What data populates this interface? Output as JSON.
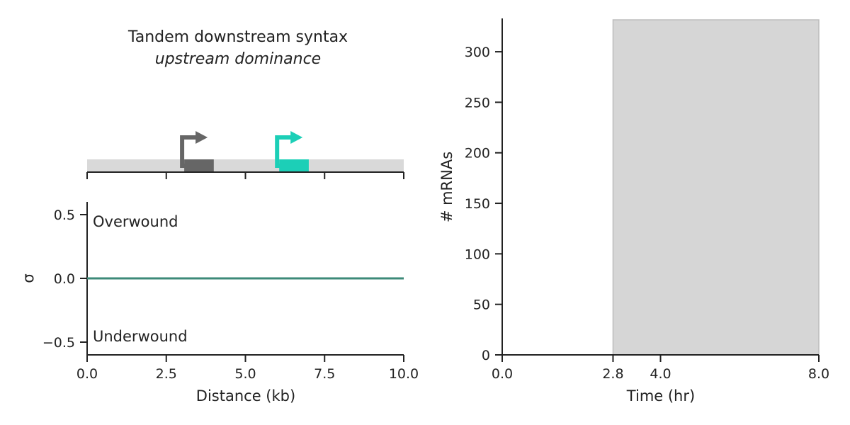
{
  "chart_data": [
    {
      "type": "diagram",
      "title": "Tandem downstream syntax",
      "subtitle": "upstream dominance",
      "xlim": [
        0,
        10
      ],
      "x_ticks": [
        0,
        2.5,
        5,
        7.5,
        10
      ],
      "genes": [
        {
          "start": 3.0,
          "end": 4.0,
          "direction": "forward",
          "color": "#666666"
        },
        {
          "start": 6.0,
          "end": 7.0,
          "direction": "forward",
          "color": "#1ccfb7"
        }
      ],
      "track_color": "#d9d9d9"
    },
    {
      "type": "line",
      "xlabel": "Distance (kb)",
      "ylabel": "σ",
      "xlim": [
        0,
        10
      ],
      "ylim": [
        -0.6,
        0.6
      ],
      "x_tick_labels": [
        "0.0",
        "2.5",
        "5.0",
        "7.5",
        "10.0"
      ],
      "x_ticks": [
        0,
        2.5,
        5,
        7.5,
        10
      ],
      "y_tick_labels": [
        "0.5",
        "0.0",
        "−0.5"
      ],
      "y_ticks": [
        0.5,
        0,
        -0.5
      ],
      "annotations": [
        "Overwound",
        "Underwound"
      ],
      "series": [
        {
          "x": [
            0,
            10
          ],
          "y": [
            0,
            0
          ],
          "color": "#3d8a78"
        }
      ]
    },
    {
      "type": "area",
      "xlabel": "Time (hr)",
      "ylabel": "# mRNAs",
      "xlim": [
        0,
        8
      ],
      "ylim": [
        0,
        333
      ],
      "x_tick_labels": [
        "0.0",
        "2.8",
        "4.0",
        "8.0"
      ],
      "x_ticks": [
        0,
        2.8,
        4.0,
        8.0
      ],
      "y_tick_labels": [
        "0",
        "50",
        "100",
        "150",
        "200",
        "250",
        "300"
      ],
      "y_ticks": [
        0,
        50,
        100,
        150,
        200,
        250,
        300
      ],
      "shaded_region": {
        "x_start": 2.8,
        "x_end": 8.0,
        "color": "#d6d6d6",
        "edge_color": "#bdbdbd"
      },
      "series": []
    }
  ]
}
